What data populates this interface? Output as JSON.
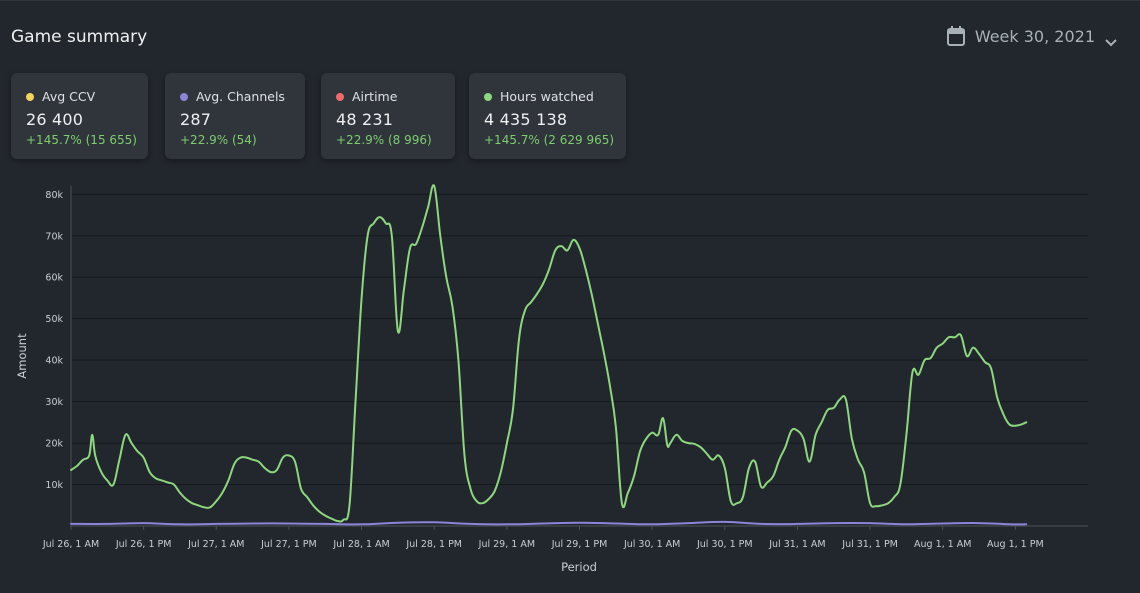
{
  "header": {
    "title": "Game summary",
    "period": "Week 30, 2021"
  },
  "colors": {
    "ccv": "#f4d35e",
    "channels": "#8b84d7",
    "airtime": "#ef6b6b",
    "hours": "#8ed67f",
    "delta": "#7dcd6f"
  },
  "cards": [
    {
      "label": "Avg CCV",
      "value": "26 400",
      "delta": "+145.7% (15 655)",
      "icon": "yellow-dot-icon"
    },
    {
      "label": "Avg. Channels",
      "value": "287",
      "delta": "+22.9% (54)",
      "icon": "purple-dot-icon"
    },
    {
      "label": "Airtime",
      "value": "48 231",
      "delta": "+22.9% (8 996)",
      "icon": "red-dot-icon"
    },
    {
      "label": "Hours watched",
      "value": "4 435 138",
      "delta": "+145.7% (2 629 965)",
      "icon": "green-dot-icon"
    }
  ],
  "chart_data": {
    "type": "line",
    "xlabel": "Period",
    "ylabel": "Amount",
    "ylim": [
      0,
      82000
    ],
    "yticks": [
      10000,
      20000,
      30000,
      40000,
      50000,
      60000,
      70000,
      80000
    ],
    "ytick_labels": [
      "10k",
      "20k",
      "30k",
      "40k",
      "50k",
      "60k",
      "70k",
      "80k"
    ],
    "xlim": [
      0,
      168
    ],
    "xticks": [
      0,
      12,
      24,
      36,
      48,
      60,
      72,
      84,
      96,
      108,
      120,
      132,
      144,
      156
    ],
    "xtick_labels": [
      "Jul 26, 1 AM",
      "Jul 26, 1 PM",
      "Jul 27, 1 AM",
      "Jul 27, 1 PM",
      "Jul 28, 1 AM",
      "Jul 28, 1 PM",
      "Jul 29, 1 AM",
      "Jul 29, 1 PM",
      "Jul 30, 1 AM",
      "Jul 30, 1 PM",
      "Jul 31, 1 AM",
      "Jul 31, 1 PM",
      "Aug 1, 1 AM",
      "Aug 1, 1 PM"
    ],
    "grid": true,
    "series": [
      {
        "name": "Hours watched",
        "color": "#8ed67f",
        "points": [
          [
            0,
            13500
          ],
          [
            1,
            14500
          ],
          [
            2,
            16000
          ],
          [
            3,
            17000
          ],
          [
            3.5,
            22000
          ],
          [
            4,
            17000
          ],
          [
            5,
            13000
          ],
          [
            6,
            11000
          ],
          [
            7,
            10000
          ],
          [
            8,
            16000
          ],
          [
            9,
            22000
          ],
          [
            10,
            20000
          ],
          [
            11,
            18000
          ],
          [
            12,
            16500
          ],
          [
            13,
            13000
          ],
          [
            14,
            11500
          ],
          [
            15,
            11000
          ],
          [
            16,
            10500
          ],
          [
            17,
            10000
          ],
          [
            18,
            8000
          ],
          [
            19,
            6500
          ],
          [
            20,
            5500
          ],
          [
            21,
            5000
          ],
          [
            22,
            4500
          ],
          [
            23,
            4500
          ],
          [
            24,
            6000
          ],
          [
            25,
            8000
          ],
          [
            26,
            11000
          ],
          [
            27,
            15000
          ],
          [
            28,
            16500
          ],
          [
            29,
            16500
          ],
          [
            30,
            16000
          ],
          [
            31,
            15500
          ],
          [
            32,
            14000
          ],
          [
            33,
            13000
          ],
          [
            34,
            13500
          ],
          [
            35,
            16500
          ],
          [
            36,
            17000
          ],
          [
            37,
            15500
          ],
          [
            38,
            9000
          ],
          [
            39,
            7000
          ],
          [
            40,
            5000
          ],
          [
            41,
            3500
          ],
          [
            42,
            2500
          ],
          [
            43,
            1800
          ],
          [
            44,
            1200
          ],
          [
            45,
            1500
          ],
          [
            46,
            5000
          ],
          [
            47,
            30000
          ],
          [
            48,
            55000
          ],
          [
            49,
            70000
          ],
          [
            50,
            73000
          ],
          [
            51,
            74500
          ],
          [
            52,
            73000
          ],
          [
            53,
            70000
          ],
          [
            54,
            47000
          ],
          [
            55,
            57000
          ],
          [
            56,
            67000
          ],
          [
            57,
            68000
          ],
          [
            58,
            72000
          ],
          [
            59,
            77000
          ],
          [
            60,
            82000
          ],
          [
            61,
            70000
          ],
          [
            62,
            60000
          ],
          [
            63,
            53000
          ],
          [
            64,
            40000
          ],
          [
            65,
            17000
          ],
          [
            66,
            9000
          ],
          [
            67,
            6000
          ],
          [
            68,
            5500
          ],
          [
            69,
            6500
          ],
          [
            70,
            8500
          ],
          [
            71,
            13000
          ],
          [
            72,
            20000
          ],
          [
            73,
            28000
          ],
          [
            74,
            45000
          ],
          [
            75,
            52000
          ],
          [
            76,
            54000
          ],
          [
            77,
            56000
          ],
          [
            78,
            58500
          ],
          [
            79,
            62000
          ],
          [
            80,
            66500
          ],
          [
            81,
            67500
          ],
          [
            82,
            66500
          ],
          [
            83,
            69000
          ],
          [
            84,
            67000
          ],
          [
            85,
            62000
          ],
          [
            86,
            56000
          ],
          [
            87,
            49000
          ],
          [
            88,
            42000
          ],
          [
            89,
            34000
          ],
          [
            90,
            24000
          ],
          [
            91,
            5500
          ],
          [
            92,
            8000
          ],
          [
            93,
            12000
          ],
          [
            94,
            18000
          ],
          [
            95,
            21000
          ],
          [
            96,
            22500
          ],
          [
            97,
            22000
          ],
          [
            97.8,
            26000
          ],
          [
            98.5,
            19500
          ],
          [
            99,
            20000
          ],
          [
            100,
            22000
          ],
          [
            101,
            20500
          ],
          [
            102,
            20000
          ],
          [
            103,
            19800
          ],
          [
            104,
            19000
          ],
          [
            105,
            17500
          ],
          [
            106,
            16000
          ],
          [
            107,
            17000
          ],
          [
            108,
            14000
          ],
          [
            109,
            6000
          ],
          [
            110,
            5500
          ],
          [
            111,
            7000
          ],
          [
            112,
            14000
          ],
          [
            113,
            15500
          ],
          [
            114,
            9500
          ],
          [
            115,
            10500
          ],
          [
            116,
            12000
          ],
          [
            117,
            16000
          ],
          [
            118,
            19000
          ],
          [
            119,
            23000
          ],
          [
            120,
            23000
          ],
          [
            121,
            21000
          ],
          [
            122,
            15500
          ],
          [
            123,
            22000
          ],
          [
            124,
            25000
          ],
          [
            125,
            28000
          ],
          [
            126,
            28500
          ],
          [
            127,
            30500
          ],
          [
            128,
            30500
          ],
          [
            129,
            21000
          ],
          [
            130,
            16000
          ],
          [
            131,
            13000
          ],
          [
            132,
            5500
          ],
          [
            133,
            4800
          ],
          [
            134,
            5000
          ],
          [
            135,
            5500
          ],
          [
            136,
            7000
          ],
          [
            137,
            10000
          ],
          [
            138,
            22000
          ],
          [
            139,
            37000
          ],
          [
            140,
            36500
          ],
          [
            141,
            40000
          ],
          [
            142,
            40500
          ],
          [
            143,
            43000
          ],
          [
            144,
            44000
          ],
          [
            145,
            45500
          ],
          [
            146,
            45500
          ],
          [
            147,
            46000
          ],
          [
            148,
            41000
          ],
          [
            149,
            43000
          ],
          [
            150,
            41500
          ],
          [
            151,
            39500
          ],
          [
            152,
            38000
          ],
          [
            153,
            31000
          ],
          [
            154,
            27000
          ],
          [
            155,
            24500
          ],
          [
            156,
            24200
          ],
          [
            157,
            24500
          ],
          [
            157.8,
            25000
          ]
        ]
      },
      {
        "name": "Avg. Channels",
        "color": "#8b84d7",
        "points": [
          [
            0,
            500
          ],
          [
            6,
            500
          ],
          [
            12,
            700
          ],
          [
            18,
            400
          ],
          [
            24,
            500
          ],
          [
            30,
            600
          ],
          [
            36,
            600
          ],
          [
            42,
            500
          ],
          [
            48,
            400
          ],
          [
            54,
            800
          ],
          [
            60,
            900
          ],
          [
            66,
            500
          ],
          [
            72,
            400
          ],
          [
            78,
            600
          ],
          [
            84,
            800
          ],
          [
            90,
            600
          ],
          [
            96,
            400
          ],
          [
            102,
            700
          ],
          [
            108,
            1000
          ],
          [
            114,
            500
          ],
          [
            120,
            500
          ],
          [
            126,
            700
          ],
          [
            132,
            700
          ],
          [
            138,
            400
          ],
          [
            144,
            600
          ],
          [
            150,
            700
          ],
          [
            155,
            400
          ],
          [
            157.8,
            400
          ]
        ]
      }
    ]
  }
}
